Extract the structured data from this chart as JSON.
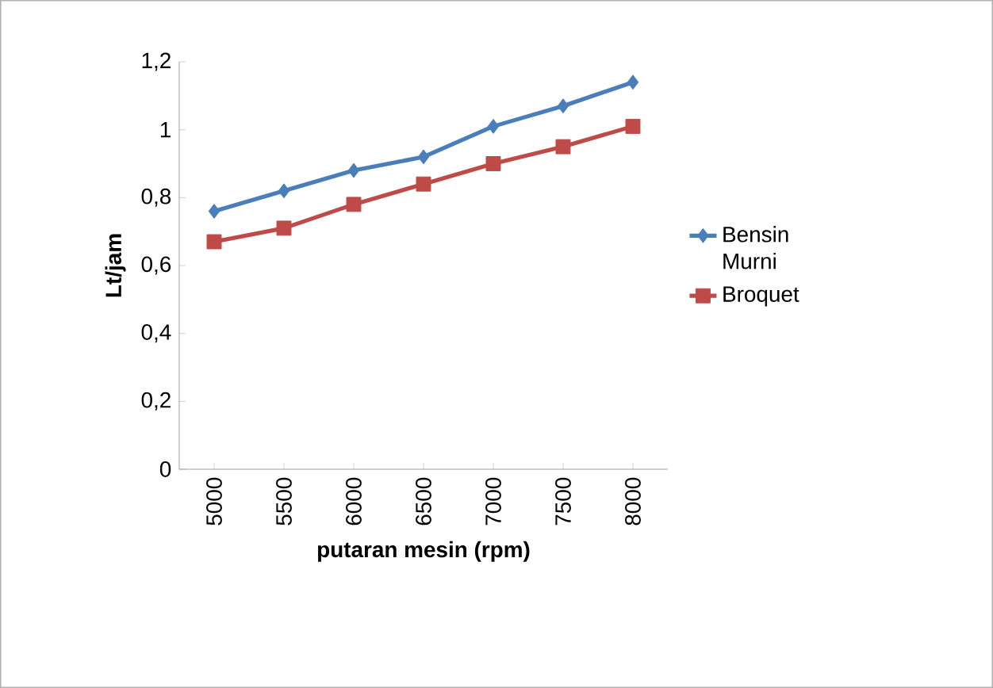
{
  "chart_data": {
    "type": "line",
    "xlabel": "putaran mesin (rpm)",
    "ylabel": "Lt/jam",
    "categories": [
      "5000",
      "5500",
      "6000",
      "6500",
      "7000",
      "7500",
      "8000"
    ],
    "series": [
      {
        "name": "Bensin Murni",
        "color": "#4a7ebb",
        "marker": "diamond",
        "values": [
          0.76,
          0.82,
          0.88,
          0.92,
          1.01,
          1.07,
          1.14
        ]
      },
      {
        "name": "Broquet",
        "color": "#be4b48",
        "marker": "square",
        "values": [
          0.67,
          0.71,
          0.78,
          0.84,
          0.9,
          0.95,
          1.01
        ]
      }
    ],
    "ylim": [
      0,
      1.2
    ],
    "yticks": [
      {
        "value": 0,
        "label": "0"
      },
      {
        "value": 0.2,
        "label": "0,2"
      },
      {
        "value": 0.4,
        "label": "0,4"
      },
      {
        "value": 0.6,
        "label": "0,6"
      },
      {
        "value": 0.8,
        "label": "0,8"
      },
      {
        "value": 1,
        "label": "1"
      },
      {
        "value": 1.2,
        "label": "1,2"
      }
    ],
    "grid": false,
    "legend": "right"
  }
}
